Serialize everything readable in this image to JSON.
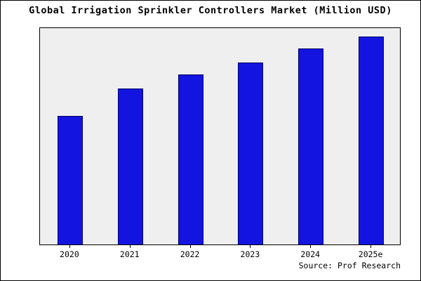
{
  "chart_data": {
    "type": "bar",
    "title": "Global Irrigation Sprinkler Controllers Market (Million USD)",
    "categories": [
      "2020",
      "2021",
      "2022",
      "2023",
      "2024",
      "2025e"
    ],
    "values": [
      595,
      720,
      785,
      840,
      905,
      960
    ],
    "xlabel": "",
    "ylabel": "",
    "ylim": [
      0,
      1000
    ],
    "grid": false,
    "legend_position": "none",
    "bar_color": "#1414e0",
    "bar_border_color": "#000066",
    "plot_background": "#efefef"
  },
  "source": "Source: Prof Research"
}
